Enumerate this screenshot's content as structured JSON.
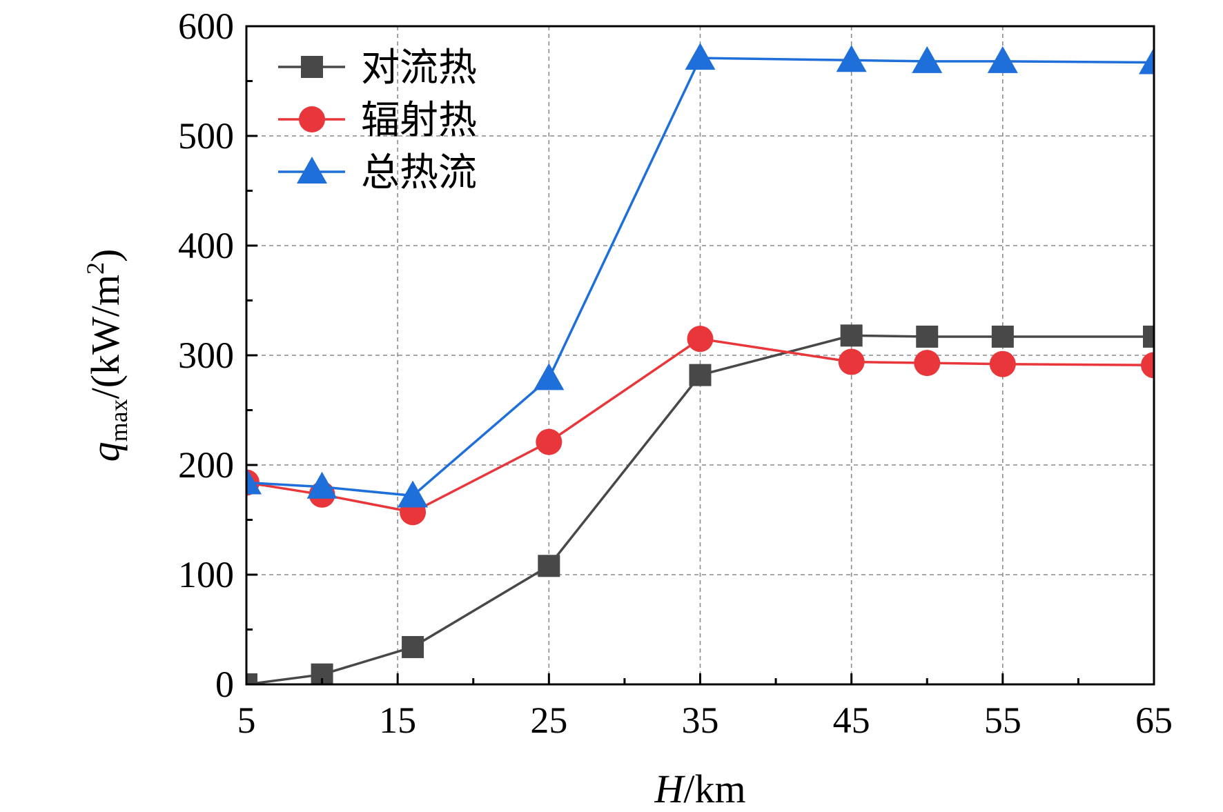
{
  "chart_data": {
    "type": "line",
    "title": "",
    "xlabel": {
      "italic": "H",
      "rest": "/km"
    },
    "ylabel": {
      "italic": "q",
      "subscript": "max",
      "rest": "/(kW/m",
      "superscript": "2",
      "close": ")"
    },
    "xlim": [
      5,
      65
    ],
    "ylim": [
      0,
      600
    ],
    "xticks": [
      5,
      15,
      25,
      35,
      45,
      55,
      65
    ],
    "yticks": [
      0,
      100,
      200,
      300,
      400,
      500,
      600
    ],
    "grid": true,
    "legend_position": "top-left",
    "x": [
      5,
      10,
      16,
      25,
      35,
      45,
      50,
      55,
      65
    ],
    "series": [
      {
        "name": "对流热",
        "color": "#484848",
        "marker": "square",
        "values": [
          0,
          9,
          34,
          108,
          282,
          318,
          317,
          317,
          317
        ]
      },
      {
        "name": "辐射热",
        "color": "#e8363a",
        "marker": "circle",
        "values": [
          184,
          173,
          157,
          221,
          315,
          294,
          293,
          292,
          291
        ]
      },
      {
        "name": "总热流",
        "color": "#1e6fd9",
        "marker": "triangle",
        "values": [
          184,
          180,
          172,
          279,
          571,
          569,
          568,
          568,
          567
        ]
      }
    ]
  }
}
